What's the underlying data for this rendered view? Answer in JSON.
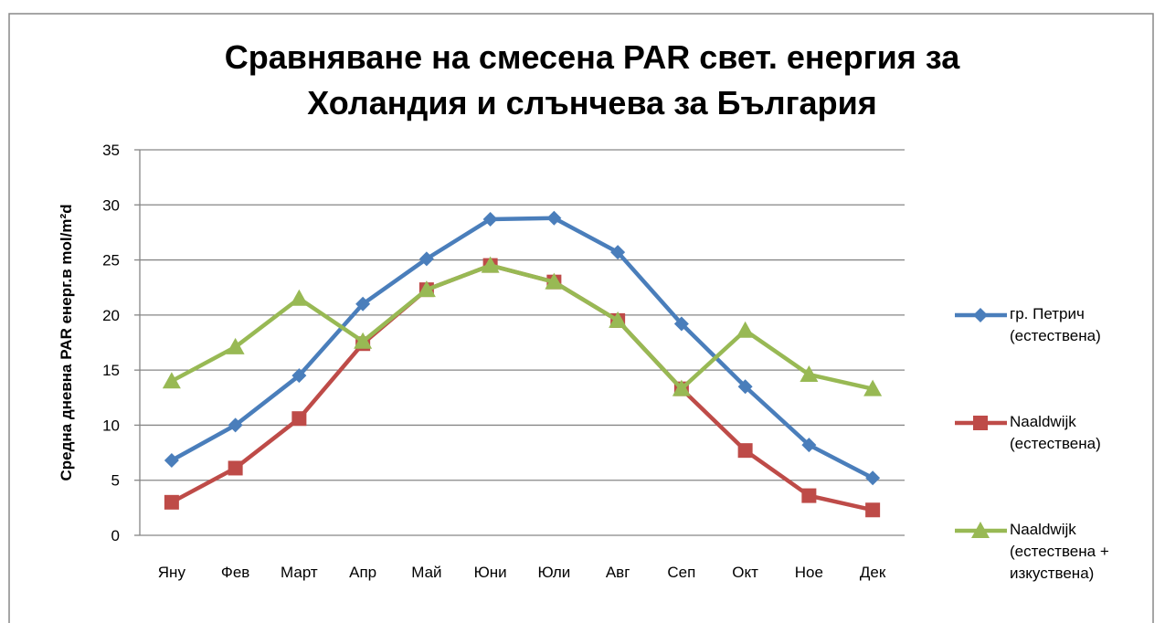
{
  "chart_data": {
    "type": "line",
    "title": [
      "Сравняване на смесена PAR свет. енергия  за",
      "Холандия и слънчева за България"
    ],
    "y_label": "Средна дневна PAR  енерг.в mol/m²d",
    "categories": [
      "Яну",
      "Фев",
      "Март",
      "Апр",
      "Май",
      "Юни",
      "Юли",
      "Авг",
      "Сеп",
      "Окт",
      "Ное",
      "Дек"
    ],
    "series": [
      {
        "name": "гр. Петрич (естествена)",
        "color": "#4a7ebb",
        "marker": "diamond",
        "values": [
          6.8,
          10,
          14.5,
          21,
          25.1,
          28.7,
          28.8,
          25.7,
          19.2,
          13.5,
          8.2,
          5.2
        ]
      },
      {
        "name": "Naaldwijk (естествена)",
        "color": "#be4b48",
        "marker": "square",
        "values": [
          3,
          6.1,
          10.6,
          17.4,
          22.3,
          24.5,
          23,
          19.5,
          13.3,
          7.7,
          3.6,
          2.3
        ]
      },
      {
        "name": "Naaldwijk (естествена + изкуствена)",
        "color": "#98b954",
        "marker": "triangle",
        "values": [
          14,
          17.1,
          21.5,
          17.6,
          22.3,
          24.5,
          23,
          19.5,
          13.3,
          18.6,
          14.6,
          13.3
        ]
      }
    ],
    "ylim": [
      0,
      35
    ],
    "yticks": [
      0,
      5,
      10,
      15,
      20,
      25,
      30,
      35
    ],
    "grid": true,
    "legend": "right"
  }
}
